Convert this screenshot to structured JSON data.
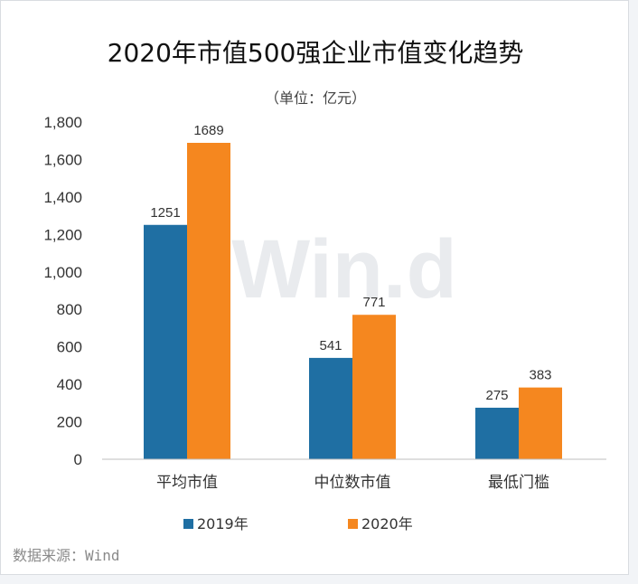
{
  "source": "数据来源：Wind",
  "watermark": "Win.d",
  "chart_data": {
    "type": "bar",
    "title": "2020年市值500强企业市值变化趋势",
    "subtitle": "（单位：亿元）",
    "categories": [
      "平均市值",
      "中位数市值",
      "最低门槛"
    ],
    "series": [
      {
        "name": "2019年",
        "values": [
          1251,
          541,
          275
        ],
        "color": "#1f6fa3"
      },
      {
        "name": "2020年",
        "values": [
          1689,
          771,
          383
        ],
        "color": "#f5871f"
      }
    ],
    "ylim": [
      0,
      1800
    ],
    "yticks": [
      "0",
      "200",
      "400",
      "600",
      "800",
      "1,000",
      "1,200",
      "1,400",
      "1,600",
      "1,800"
    ],
    "ytick_values": [
      0,
      200,
      400,
      600,
      800,
      1000,
      1200,
      1400,
      1600,
      1800
    ],
    "legend_position": "bottom",
    "grid": false
  }
}
